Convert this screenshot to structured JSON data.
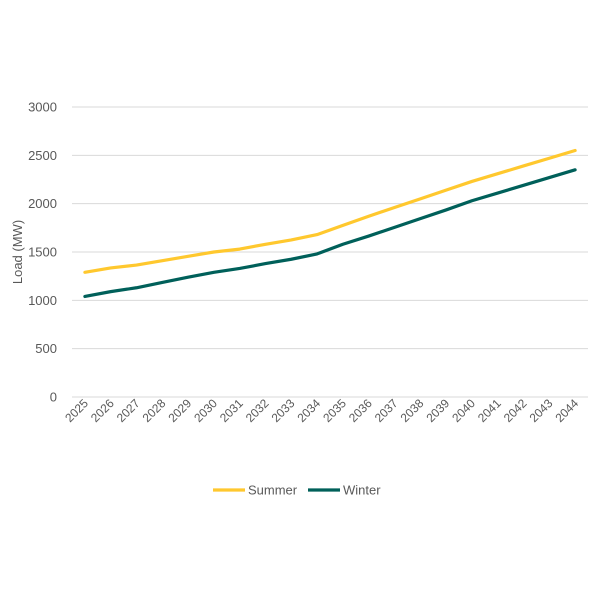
{
  "chart_data": {
    "type": "line",
    "title": "",
    "xlabel": "",
    "ylabel": "Load (MW)",
    "ylim": [
      0,
      3000
    ],
    "yticks": [
      0,
      500,
      1000,
      1500,
      2000,
      2500,
      3000
    ],
    "grid": true,
    "legend_position": "bottom",
    "categories": [
      "2025",
      "2026",
      "2027",
      "2028",
      "2029",
      "2030",
      "2031",
      "2032",
      "2033",
      "2034",
      "2035",
      "2036",
      "2037",
      "2038",
      "2039",
      "2040",
      "2041",
      "2042",
      "2043",
      "2044"
    ],
    "series": [
      {
        "name": "Summer",
        "color": "#FFC82E",
        "values": [
          1290,
          1335,
          1365,
          1410,
          1455,
          1500,
          1530,
          1580,
          1625,
          1680,
          1775,
          1870,
          1960,
          2050,
          2140,
          2230,
          2310,
          2390,
          2470,
          2550
        ]
      },
      {
        "name": "Winter",
        "color": "#00605A",
        "values": [
          1040,
          1090,
          1130,
          1185,
          1240,
          1290,
          1330,
          1380,
          1425,
          1480,
          1580,
          1665,
          1755,
          1845,
          1935,
          2030,
          2110,
          2190,
          2270,
          2350
        ]
      }
    ]
  }
}
